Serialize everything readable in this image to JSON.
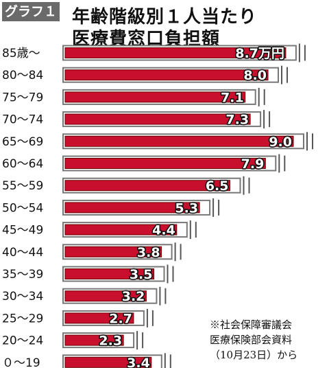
{
  "header": {
    "graph_tag": "グラフ１",
    "title_line1": "年齢階級別１人当たり",
    "title_line2": "医療費窓口負担額"
  },
  "chart_data": {
    "type": "bar",
    "orientation": "horizontal",
    "title": "年齢階級別１人当たり医療費窓口負担額",
    "unit": "万円",
    "categories": [
      "85歳～",
      "80～84",
      "75～79",
      "70～74",
      "65～69",
      "60～64",
      "55～59",
      "50～54",
      "45～49",
      "40～44",
      "35～39",
      "30～34",
      "25～29",
      "20～24",
      "０～19"
    ],
    "values": [
      8.7,
      8.0,
      7.1,
      7.3,
      9.0,
      7.9,
      6.5,
      5.3,
      4.4,
      3.8,
      3.5,
      3.2,
      2.7,
      2.3,
      3.4
    ],
    "value_labels": [
      "8.7万円",
      "8.0",
      "7.1",
      "7.3",
      "9.0",
      "7.9",
      "6.5",
      "5.3",
      "4.4",
      "3.8",
      "3.5",
      "3.2",
      "2.7",
      "2.3",
      "3.4"
    ],
    "bar_color": "#c8102e",
    "xlim": [
      0,
      9.5
    ],
    "grid": false,
    "legend": "none"
  },
  "source_note": {
    "line1": "※社会保障審議会",
    "line2": "医療保険部会資料",
    "line3": "（10月23日）から"
  }
}
